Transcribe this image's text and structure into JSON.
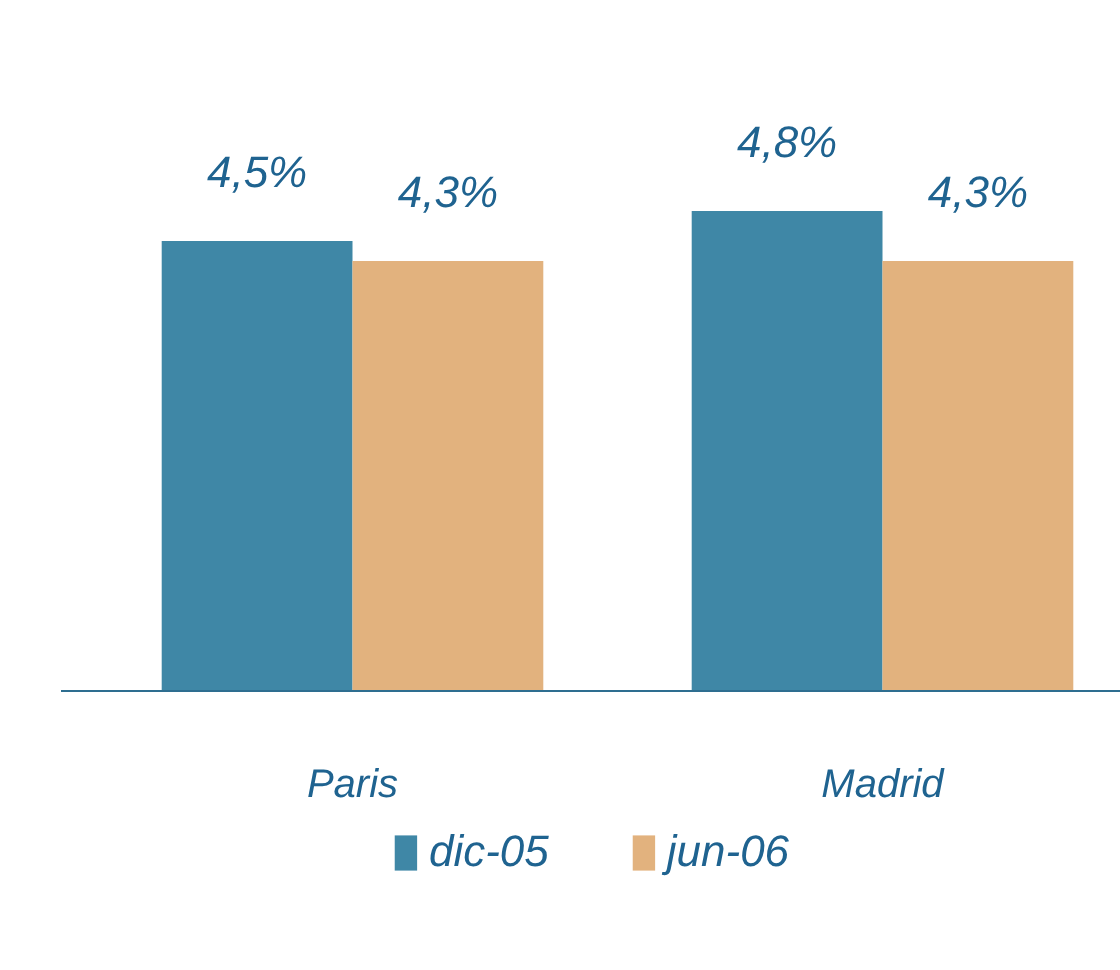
{
  "chart_data": {
    "type": "bar",
    "categories": [
      "Paris",
      "Madrid"
    ],
    "series": [
      {
        "name": "dic-05",
        "color": "#3f87a6",
        "values": [
          4.5,
          4.8
        ],
        "value_labels": [
          "4,5%",
          "4,8%"
        ]
      },
      {
        "name": "jun-06",
        "color": "#e2b27e",
        "values": [
          4.3,
          4.3
        ],
        "value_labels": [
          "4,3%",
          "4,3%"
        ]
      }
    ],
    "legend": "bottom",
    "tick_labels": "x"
  }
}
